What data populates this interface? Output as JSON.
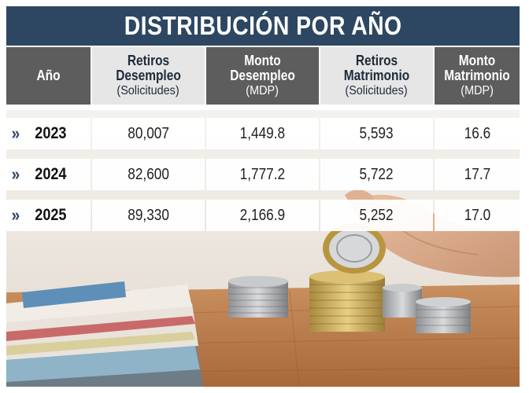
{
  "title": "DISTRIBUCIÓN POR AÑO",
  "headers": [
    {
      "line1": "Año",
      "line2": ""
    },
    {
      "line1": "Retiros Desempleo",
      "line2": "(Solicitudes)"
    },
    {
      "line1": "Monto Desempleo",
      "line2": "(MDP)"
    },
    {
      "line1": "Retiros Matrimonio",
      "line2": "(Solicitudes)"
    },
    {
      "line1": "Monto Matrimonio",
      "line2": "(MDP)"
    }
  ],
  "rows": [
    {
      "year": "2023",
      "retiros_desempleo": "80,007",
      "monto_desempleo": "1,449.8",
      "retiros_matrimonio": "5,593",
      "monto_matrimonio": "16.6"
    },
    {
      "year": "2024",
      "retiros_desempleo": "82,600",
      "monto_desempleo": "1,777.2",
      "retiros_matrimonio": "5,722",
      "monto_matrimonio": "17.7"
    },
    {
      "year": "2025",
      "retiros_desempleo": "89,330",
      "monto_desempleo": "2,166.9",
      "retiros_matrimonio": "5,252",
      "monto_matrimonio": "17.0"
    }
  ],
  "row_marker": "»",
  "colors": {
    "title_bg": "#2d4762",
    "header_dark": "#5d5d5d",
    "header_light": "#e6e6e6",
    "marker": "#2d4762"
  }
}
